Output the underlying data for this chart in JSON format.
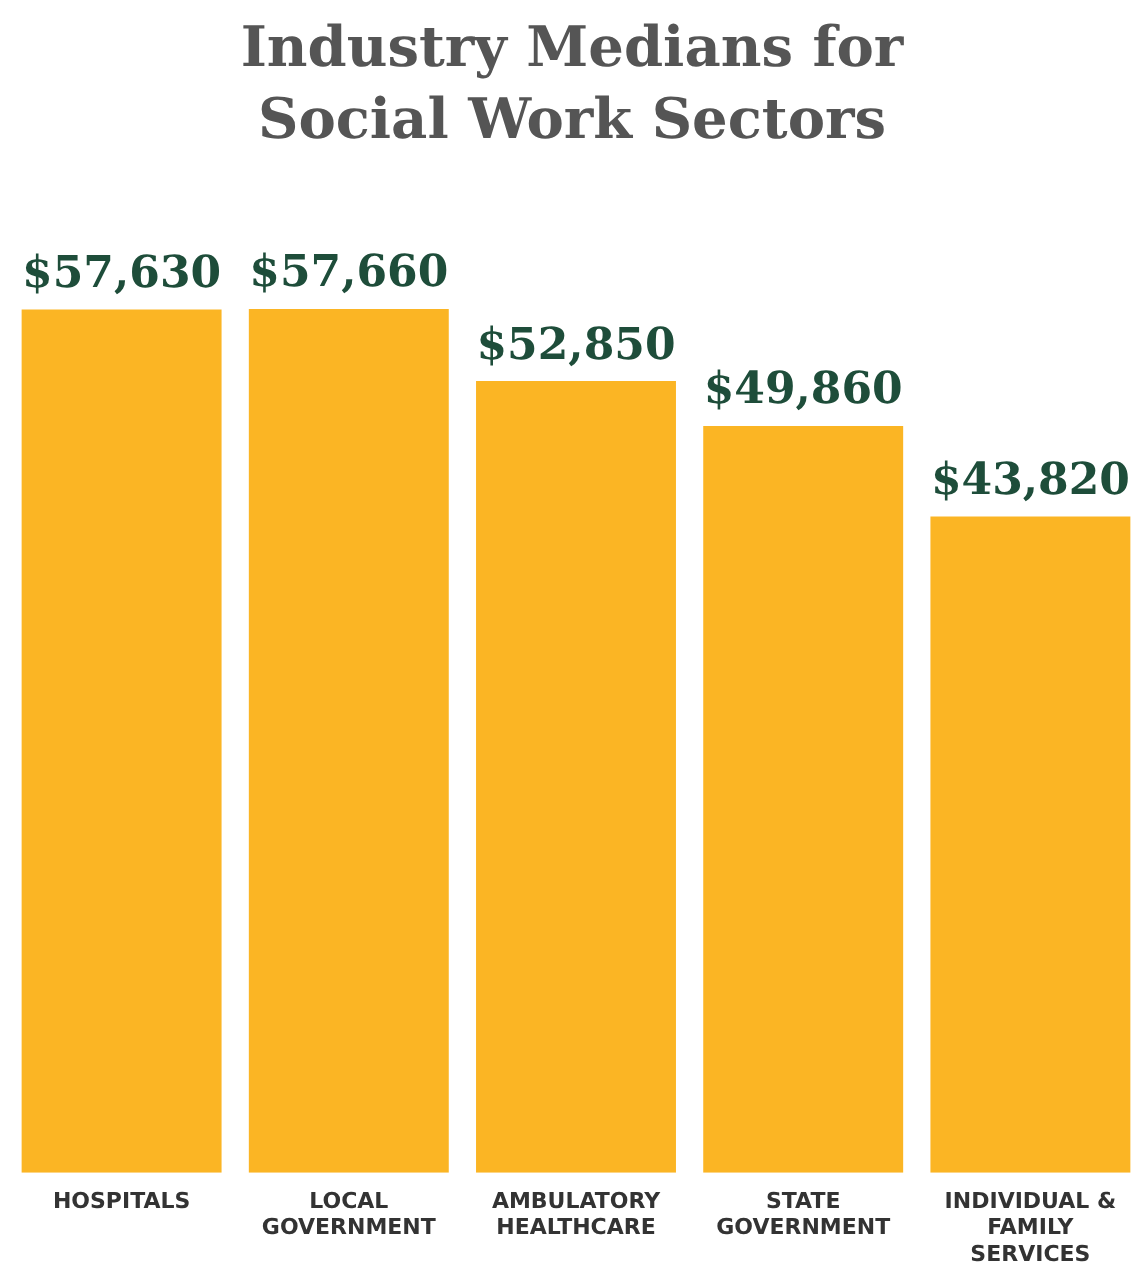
{
  "chart_data": {
    "type": "bar",
    "title": "Industry Medians for Social Work Sectors",
    "categories": [
      "HOSPITALS",
      "LOCAL GOVERNMENT",
      "AMBULATORY HEALTHCARE",
      "STATE GOVERNMENT",
      "INDIVIDUAL & FAMILY SERVICES"
    ],
    "values": [
      57630,
      57660,
      52850,
      49860,
      43820
    ],
    "value_labels": [
      "$57,630",
      "$57,660",
      "$52,850",
      "$49,860",
      "$43,820"
    ],
    "color": "#fbb524",
    "grid": false,
    "legend": false
  }
}
